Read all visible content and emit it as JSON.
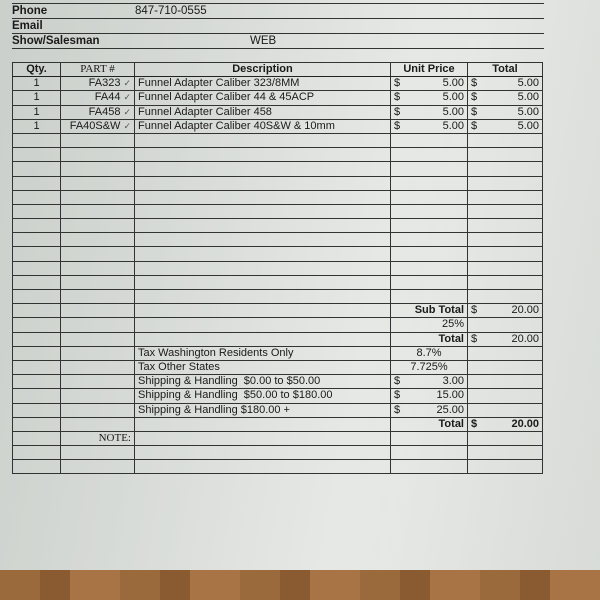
{
  "customer_info": {
    "phone_label": "Phone",
    "phone_value": "847-710-0555",
    "email_label": "Email",
    "email_value": "",
    "salesman_label": "Show/Salesman",
    "salesman_value": "WEB"
  },
  "table": {
    "headers": {
      "qty": "Qty.",
      "part": "PART #",
      "description": "Description",
      "unit_price": "Unit Price",
      "total": "Total"
    },
    "currency": "$",
    "check_mark": "✓",
    "items": [
      {
        "qty": "1",
        "part": "FA323",
        "description": "Funnel Adapter Caliber 323/8MM",
        "unit_price": "5.00",
        "total": "5.00"
      },
      {
        "qty": "1",
        "part": "FA44",
        "description": "Funnel Adapter Caliber 44 & 45ACP",
        "unit_price": "5.00",
        "total": "5.00"
      },
      {
        "qty": "1",
        "part": "FA458",
        "description": "Funnel Adapter Caliber 458",
        "unit_price": "5.00",
        "total": "5.00"
      },
      {
        "qty": "1",
        "part": "FA40S&W",
        "description": "Funnel Adapter Caliber 40S&W & 10mm",
        "unit_price": "5.00",
        "total": "5.00"
      }
    ]
  },
  "summary": {
    "subtotal_label": "Sub Total",
    "subtotal_value": "20.00",
    "discount_percent": "25%",
    "total_label": "Total",
    "total_value": "20.00",
    "tax_wa_label": "Tax Washington Residents Only",
    "tax_wa_value": "8.7%",
    "tax_other_label": "Tax Other States",
    "tax_other_value": "7.725%",
    "shipping": [
      {
        "label": "Shipping & Handling  $0.00 to $50.00",
        "value": "3.00"
      },
      {
        "label": "Shipping & Handling  $50.00 to $180.00",
        "value": "15.00"
      },
      {
        "label": "Shipping & Handling $180.00 +",
        "value": "25.00"
      }
    ],
    "grand_total_label": "Total",
    "grand_total_value": "20.00",
    "note_label": "NOTE:"
  }
}
